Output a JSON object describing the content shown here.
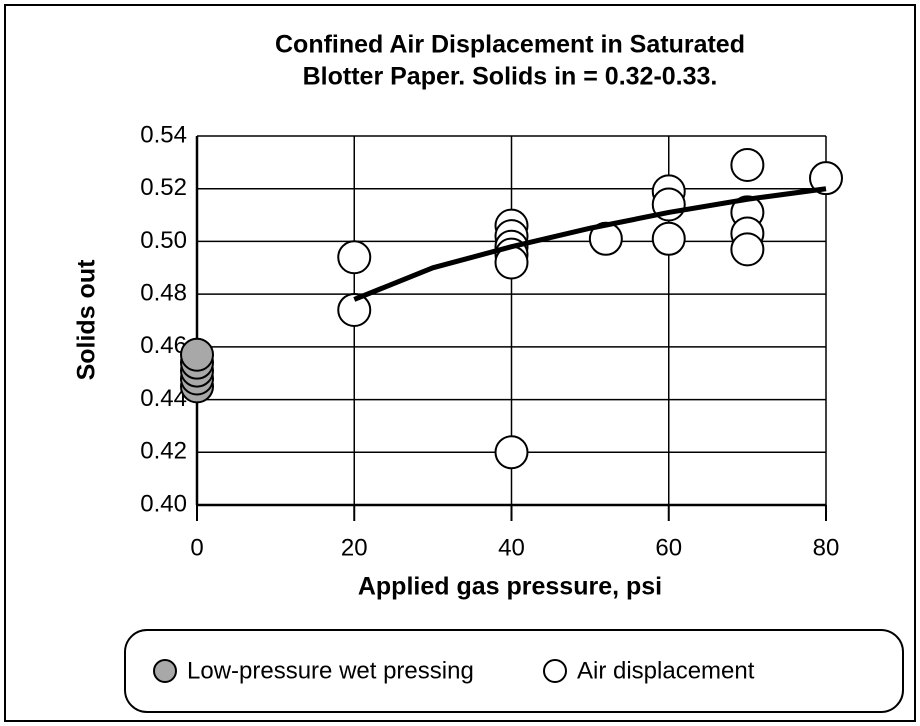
{
  "chart_data": {
    "type": "scatter",
    "title": [
      "Confined Air Displacement in Saturated",
      "Blotter Paper. Solids in = 0.32-0.33."
    ],
    "x_label": "Applied gas pressure, psi",
    "y_label": "Solids out",
    "xlim": [
      0,
      80
    ],
    "xticks": [
      0,
      20,
      40,
      60,
      80
    ],
    "ylim": [
      0.4,
      0.54
    ],
    "yticks": [
      {
        "value": 0.4,
        "label": "0.40"
      },
      {
        "value": 0.42,
        "label": "0.42"
      },
      {
        "value": 0.44,
        "label": "0.44"
      },
      {
        "value": 0.46,
        "label": "0.46"
      },
      {
        "value": 0.48,
        "label": "0.48"
      },
      {
        "value": 0.5,
        "label": "0.50"
      },
      {
        "value": 0.52,
        "label": "0.52"
      },
      {
        "value": 0.54,
        "label": "0.54"
      }
    ],
    "grid": true,
    "series": [
      {
        "name": "Low-pressure wet pressing",
        "color": "#a8a8a8",
        "x": [
          0,
          0,
          0,
          0,
          0
        ],
        "values": [
          0.445,
          0.448,
          0.451,
          0.454,
          0.457
        ]
      },
      {
        "name": "Air displacement",
        "color": "#ffffff",
        "x": [
          20,
          20,
          40,
          40,
          40,
          40,
          40,
          40,
          52,
          60,
          60,
          60,
          70,
          70,
          70,
          70,
          80
        ],
        "values": [
          0.494,
          0.474,
          0.506,
          0.502,
          0.498,
          0.495,
          0.492,
          0.42,
          0.501,
          0.519,
          0.514,
          0.501,
          0.529,
          0.511,
          0.503,
          0.497,
          0.524
        ]
      }
    ],
    "curve": {
      "x": [
        20,
        30,
        40,
        50,
        60,
        70,
        80
      ],
      "values": [
        0.478,
        0.49,
        0.498,
        0.505,
        0.511,
        0.516,
        0.52
      ]
    }
  }
}
